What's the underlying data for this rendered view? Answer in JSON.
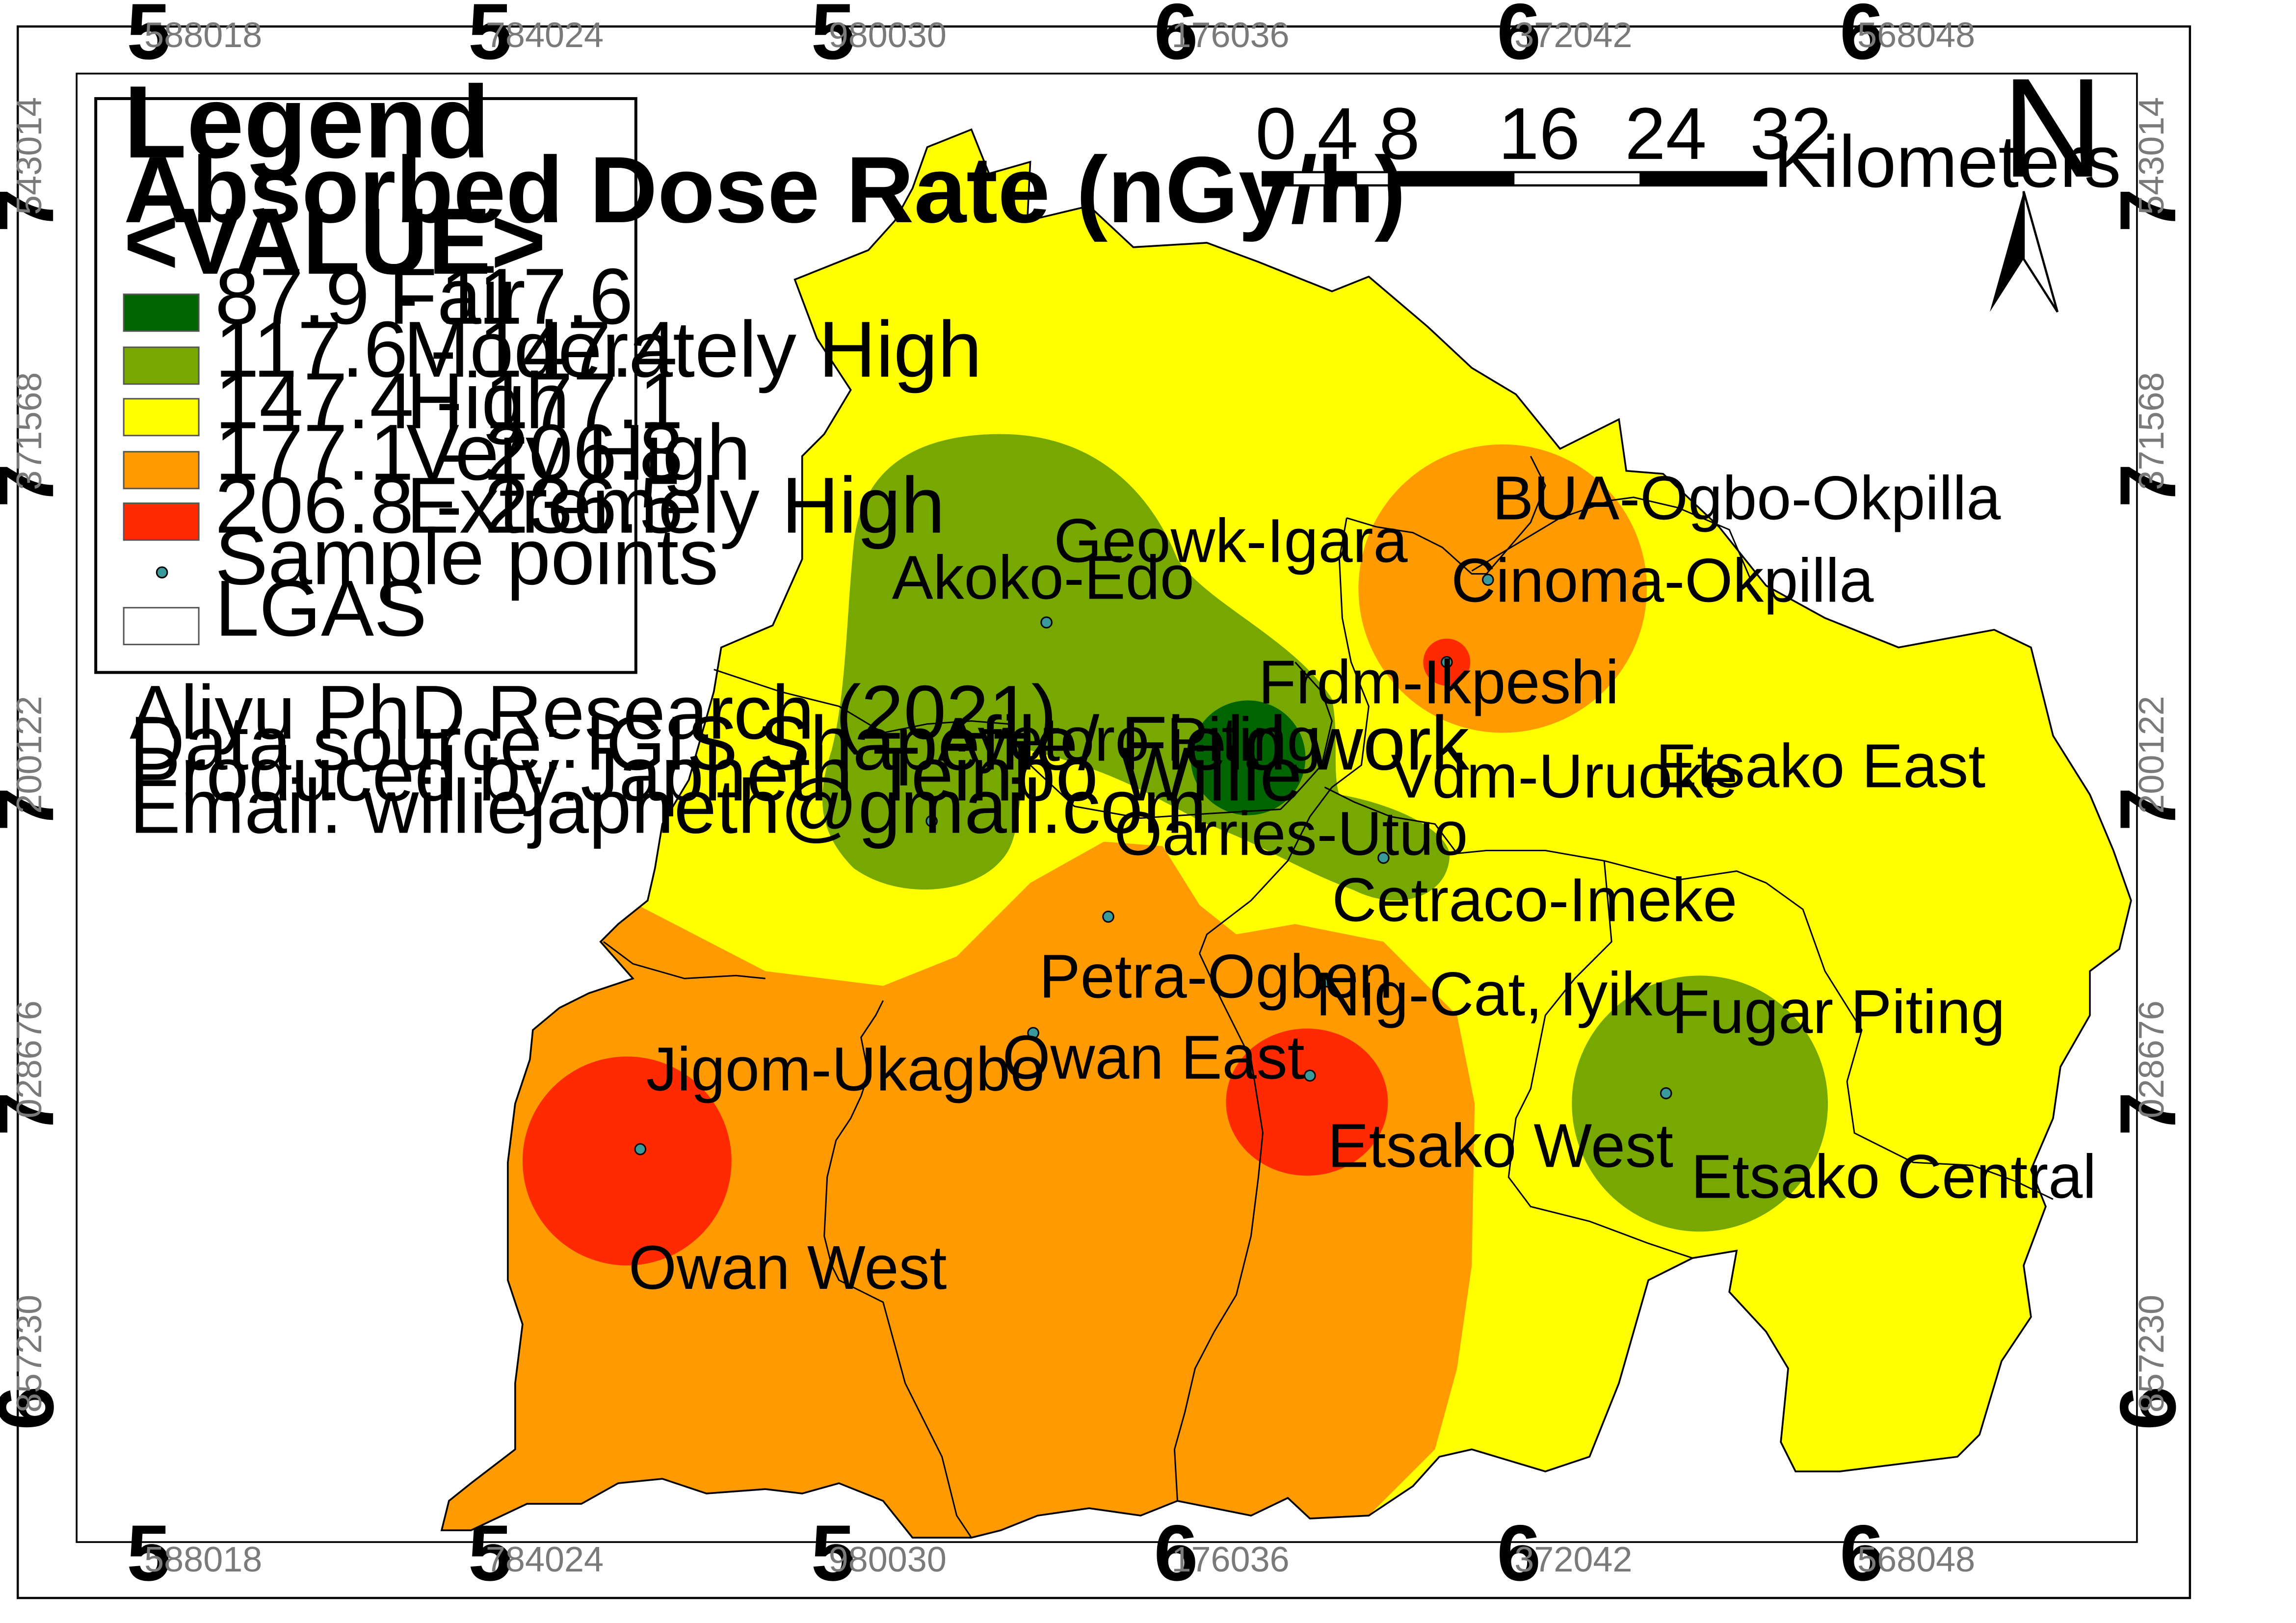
{
  "colors": {
    "fair": "#006400",
    "moderately_high": "#76a800",
    "high": "#ffff00",
    "very_high": "#ff9a00",
    "extremely_high": "#ff2a00",
    "sample_point": "#3a9a9a",
    "boundary": "#000000"
  },
  "frame": {
    "top_labels": [
      {
        "major": "5",
        "minor": "588018"
      },
      {
        "major": "5",
        "minor": "784024"
      },
      {
        "major": "5",
        "minor": "980030"
      },
      {
        "major": "6",
        "minor": "176036"
      },
      {
        "major": "6",
        "minor": "372042"
      },
      {
        "major": "6",
        "minor": "568048"
      }
    ],
    "side_labels": [
      {
        "major": "7",
        "minor": "543014"
      },
      {
        "major": "7",
        "minor": "371568"
      },
      {
        "major": "7",
        "minor": "200122"
      },
      {
        "major": "7",
        "minor": "028676"
      },
      {
        "major": "6",
        "minor": "857230"
      }
    ]
  },
  "legend": {
    "title": "Legend",
    "subtitle": "Absorbed Dose Rate (nGy/h)",
    "field": "<VALUE>",
    "classes": [
      {
        "range": "87.9 - 117.6",
        "label": "Fair",
        "color": "#006400"
      },
      {
        "range": "117.6 - 147.4",
        "label": "Moderately High",
        "color": "#76a800"
      },
      {
        "range": "147.4 - 177.1",
        "label": "High",
        "color": "#ffff00"
      },
      {
        "range": "177.1 - 206.8",
        "label": "Very High",
        "color": "#ff9a00"
      },
      {
        "range": "206.8 - 236.5",
        "label": "Extremely High",
        "color": "#ff2a00"
      }
    ],
    "sample_points_label": "Sample points",
    "lgas_label": "LGAS"
  },
  "credits": [
    "Aliyu PhD Research (2021)",
    "Data source: IGIS Shapefile/ Field work",
    "Produced by:Japheth Teinbo Willie",
    "Email: williejapheth@gmail.com"
  ],
  "scale_bar": {
    "ticks": [
      "0",
      "4",
      "8",
      "16",
      "24",
      "32"
    ],
    "unit": "Kilometers"
  },
  "north_arrow": {
    "label": "N"
  },
  "sample_sites": [
    {
      "name": "Geowk-Igara"
    },
    {
      "name": "Akoko-Edo"
    },
    {
      "name": "Ayetoro Piting"
    },
    {
      "name": "Frdm-Ikpeshi"
    },
    {
      "name": "BUA-Ogbo-Okpilla"
    },
    {
      "name": "Cinoma-Okpilla"
    },
    {
      "name": "Vdm-Uruoke"
    },
    {
      "name": "Oarries-Utuo"
    },
    {
      "name": "Cetraco-Imeke"
    },
    {
      "name": "Petra-Ogben"
    },
    {
      "name": "Nig-Cat, Iyiku"
    },
    {
      "name": "Jigom-Ukagbo"
    },
    {
      "name": "Fugar Piting"
    }
  ],
  "lga_names": [
    "Etsako East",
    "Owan East",
    "Owan West",
    "Etsako West",
    "Etsako Central"
  ]
}
